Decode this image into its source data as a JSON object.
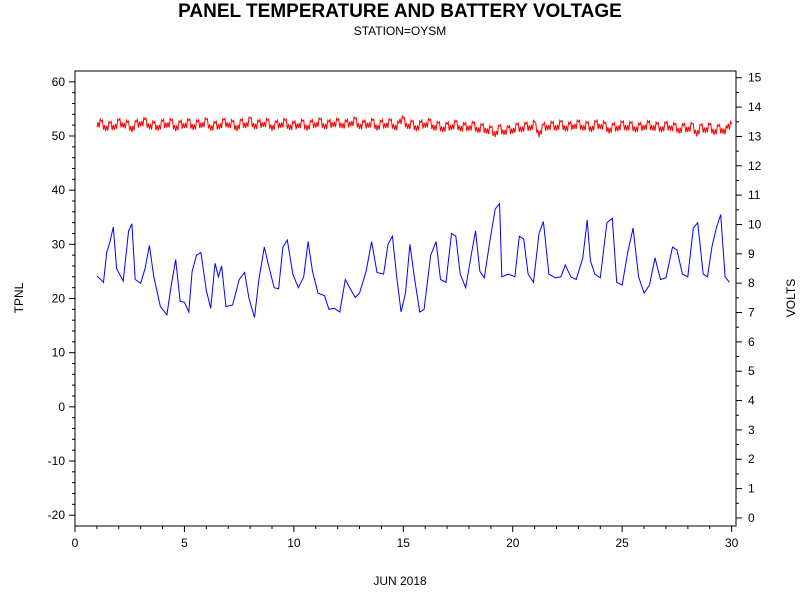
{
  "chart_data": {
    "type": "line",
    "title": "PANEL TEMPERATURE AND BATTERY VOLTAGE",
    "subtitle": "STATION=OYSM",
    "xlabel": "JUN 2018",
    "ylabel_left": "TPNL",
    "ylabel_right": "VOLTS",
    "xlim": [
      0,
      30.2
    ],
    "ylim_left": [
      -22,
      62
    ],
    "ylim_right": [
      -0.275,
      15.23
    ],
    "x_ticks": [
      "0",
      "5",
      "10",
      "15",
      "20",
      "25",
      "30"
    ],
    "y_left_ticks": [
      "-20",
      "-10",
      "0",
      "10",
      "20",
      "30",
      "40",
      "50",
      "60"
    ],
    "y_right_ticks": [
      "0",
      "1",
      "2",
      "3",
      "4",
      "5",
      "6",
      "7",
      "8",
      "9",
      "10",
      "11",
      "12",
      "13",
      "14",
      "15"
    ],
    "grid": false,
    "series": [
      {
        "name": "TPNL",
        "axis": "left",
        "color": "#0000ff",
        "points": [
          [
            1.0,
            24.2
          ],
          [
            1.3,
            23.0
          ],
          [
            1.45,
            28.5
          ],
          [
            1.6,
            30.5
          ],
          [
            1.75,
            33.2
          ],
          [
            1.9,
            25.5
          ],
          [
            2.1,
            24.0
          ],
          [
            2.2,
            23.2
          ],
          [
            2.45,
            32.5
          ],
          [
            2.6,
            33.8
          ],
          [
            2.75,
            23.5
          ],
          [
            3.0,
            22.8
          ],
          [
            3.2,
            25.5
          ],
          [
            3.4,
            29.8
          ],
          [
            3.6,
            24.0
          ],
          [
            3.9,
            18.5
          ],
          [
            4.2,
            17.0
          ],
          [
            4.4,
            22.5
          ],
          [
            4.6,
            27.2
          ],
          [
            4.8,
            19.5
          ],
          [
            5.0,
            19.3
          ],
          [
            5.2,
            17.5
          ],
          [
            5.35,
            25.0
          ],
          [
            5.55,
            28.0
          ],
          [
            5.75,
            28.5
          ],
          [
            6.0,
            21.5
          ],
          [
            6.2,
            18.2
          ],
          [
            6.4,
            26.5
          ],
          [
            6.55,
            24.0
          ],
          [
            6.7,
            26.0
          ],
          [
            6.9,
            18.5
          ],
          [
            7.2,
            18.8
          ],
          [
            7.5,
            23.5
          ],
          [
            7.75,
            24.8
          ],
          [
            7.95,
            20.0
          ],
          [
            8.2,
            16.5
          ],
          [
            8.4,
            23.5
          ],
          [
            8.65,
            29.5
          ],
          [
            8.85,
            26.0
          ],
          [
            9.1,
            22.0
          ],
          [
            9.3,
            21.8
          ],
          [
            9.5,
            29.5
          ],
          [
            9.7,
            30.8
          ],
          [
            9.95,
            24.5
          ],
          [
            10.2,
            22.0
          ],
          [
            10.45,
            24.0
          ],
          [
            10.65,
            30.5
          ],
          [
            10.85,
            25.0
          ],
          [
            11.1,
            21.0
          ],
          [
            11.4,
            20.5
          ],
          [
            11.6,
            18.0
          ],
          [
            11.85,
            18.2
          ],
          [
            12.1,
            17.5
          ],
          [
            12.35,
            23.5
          ],
          [
            12.55,
            22.0
          ],
          [
            12.8,
            20.2
          ],
          [
            13.0,
            21.0
          ],
          [
            13.3,
            25.0
          ],
          [
            13.55,
            30.5
          ],
          [
            13.8,
            24.8
          ],
          [
            14.1,
            24.5
          ],
          [
            14.3,
            30.0
          ],
          [
            14.5,
            31.5
          ],
          [
            14.7,
            24.0
          ],
          [
            14.9,
            17.5
          ],
          [
            15.1,
            21.0
          ],
          [
            15.3,
            30.0
          ],
          [
            15.5,
            24.0
          ],
          [
            15.75,
            17.5
          ],
          [
            15.95,
            18.0
          ],
          [
            16.25,
            28.0
          ],
          [
            16.5,
            30.5
          ],
          [
            16.7,
            23.5
          ],
          [
            16.95,
            23.0
          ],
          [
            17.2,
            32.0
          ],
          [
            17.4,
            31.5
          ],
          [
            17.6,
            24.5
          ],
          [
            17.85,
            22.0
          ],
          [
            18.1,
            28.0
          ],
          [
            18.3,
            32.5
          ],
          [
            18.5,
            25.0
          ],
          [
            18.7,
            23.8
          ],
          [
            18.95,
            30.5
          ],
          [
            19.2,
            36.5
          ],
          [
            19.4,
            37.5
          ],
          [
            19.5,
            24.0
          ],
          [
            19.8,
            24.5
          ],
          [
            20.1,
            24.0
          ],
          [
            20.3,
            31.5
          ],
          [
            20.5,
            31.0
          ],
          [
            20.7,
            24.5
          ],
          [
            20.95,
            23.0
          ],
          [
            21.2,
            32.0
          ],
          [
            21.4,
            34.2
          ],
          [
            21.65,
            24.5
          ],
          [
            21.95,
            23.8
          ],
          [
            22.2,
            24.0
          ],
          [
            22.4,
            26.2
          ],
          [
            22.65,
            24.0
          ],
          [
            22.9,
            23.5
          ],
          [
            23.2,
            27.5
          ],
          [
            23.4,
            34.5
          ],
          [
            23.55,
            27.0
          ],
          [
            23.75,
            24.5
          ],
          [
            24.0,
            23.8
          ],
          [
            24.3,
            34.0
          ],
          [
            24.55,
            34.8
          ],
          [
            24.75,
            23.0
          ],
          [
            25.0,
            22.5
          ],
          [
            25.25,
            28.5
          ],
          [
            25.5,
            33.0
          ],
          [
            25.75,
            24.0
          ],
          [
            26.0,
            21.0
          ],
          [
            26.25,
            22.5
          ],
          [
            26.5,
            27.5
          ],
          [
            26.75,
            23.5
          ],
          [
            27.0,
            23.8
          ],
          [
            27.3,
            29.5
          ],
          [
            27.5,
            29.0
          ],
          [
            27.75,
            24.5
          ],
          [
            28.0,
            24.0
          ],
          [
            28.25,
            33.0
          ],
          [
            28.45,
            34.0
          ],
          [
            28.7,
            24.5
          ],
          [
            28.9,
            24.0
          ],
          [
            29.1,
            29.5
          ],
          [
            29.3,
            33.0
          ],
          [
            29.5,
            35.5
          ],
          [
            29.7,
            24.0
          ],
          [
            29.9,
            23.0
          ]
        ]
      },
      {
        "name": "VOLTS",
        "axis": "right",
        "color": "#ff0000",
        "points": [
          [
            1.0,
            13.32
          ],
          [
            1.2,
            13.52
          ],
          [
            1.4,
            13.18
          ],
          [
            1.6,
            13.45
          ],
          [
            1.8,
            13.22
          ],
          [
            2.0,
            13.55
          ],
          [
            2.2,
            13.3
          ],
          [
            2.4,
            13.48
          ],
          [
            2.6,
            13.15
          ],
          [
            2.8,
            13.5
          ],
          [
            3.0,
            13.35
          ],
          [
            3.2,
            13.58
          ],
          [
            3.4,
            13.25
          ],
          [
            3.6,
            13.46
          ],
          [
            3.8,
            13.2
          ],
          [
            4.0,
            13.52
          ],
          [
            4.2,
            13.3
          ],
          [
            4.4,
            13.55
          ],
          [
            4.6,
            13.18
          ],
          [
            4.8,
            13.48
          ],
          [
            5.0,
            13.28
          ],
          [
            5.2,
            13.55
          ],
          [
            5.4,
            13.22
          ],
          [
            5.6,
            13.5
          ],
          [
            5.8,
            13.3
          ],
          [
            6.0,
            13.58
          ],
          [
            6.2,
            13.2
          ],
          [
            6.4,
            13.45
          ],
          [
            6.6,
            13.25
          ],
          [
            6.8,
            13.56
          ],
          [
            7.0,
            13.3
          ],
          [
            7.2,
            13.5
          ],
          [
            7.4,
            13.18
          ],
          [
            7.6,
            13.55
          ],
          [
            7.8,
            13.28
          ],
          [
            8.0,
            13.62
          ],
          [
            8.2,
            13.25
          ],
          [
            8.4,
            13.5
          ],
          [
            8.6,
            13.32
          ],
          [
            8.8,
            13.55
          ],
          [
            9.0,
            13.2
          ],
          [
            9.2,
            13.48
          ],
          [
            9.4,
            13.3
          ],
          [
            9.6,
            13.55
          ],
          [
            9.8,
            13.22
          ],
          [
            10.0,
            13.45
          ],
          [
            10.2,
            13.28
          ],
          [
            10.4,
            13.52
          ],
          [
            10.6,
            13.2
          ],
          [
            10.8,
            13.5
          ],
          [
            11.0,
            13.3
          ],
          [
            11.2,
            13.58
          ],
          [
            11.4,
            13.25
          ],
          [
            11.6,
            13.5
          ],
          [
            11.8,
            13.32
          ],
          [
            12.0,
            13.55
          ],
          [
            12.2,
            13.28
          ],
          [
            12.4,
            13.5
          ],
          [
            12.6,
            13.35
          ],
          [
            12.8,
            13.6
          ],
          [
            13.0,
            13.25
          ],
          [
            13.2,
            13.48
          ],
          [
            13.4,
            13.3
          ],
          [
            13.6,
            13.55
          ],
          [
            13.8,
            13.2
          ],
          [
            14.0,
            13.5
          ],
          [
            14.2,
            13.28
          ],
          [
            14.4,
            13.55
          ],
          [
            14.6,
            13.22
          ],
          [
            14.8,
            13.45
          ],
          [
            15.0,
            13.62
          ],
          [
            15.2,
            13.25
          ],
          [
            15.4,
            13.5
          ],
          [
            15.6,
            13.18
          ],
          [
            15.8,
            13.48
          ],
          [
            16.0,
            13.3
          ],
          [
            16.2,
            13.55
          ],
          [
            16.4,
            13.2
          ],
          [
            16.6,
            13.45
          ],
          [
            16.8,
            13.15
          ],
          [
            17.0,
            13.42
          ],
          [
            17.2,
            13.22
          ],
          [
            17.4,
            13.5
          ],
          [
            17.6,
            13.18
          ],
          [
            17.8,
            13.4
          ],
          [
            18.0,
            13.2
          ],
          [
            18.2,
            13.45
          ],
          [
            18.4,
            13.12
          ],
          [
            18.6,
            13.38
          ],
          [
            18.8,
            13.1
          ],
          [
            19.0,
            13.3
          ],
          [
            19.2,
            12.98
          ],
          [
            19.4,
            13.35
          ],
          [
            19.6,
            13.05
          ],
          [
            19.8,
            13.3
          ],
          [
            20.0,
            13.1
          ],
          [
            20.2,
            13.4
          ],
          [
            20.4,
            13.15
          ],
          [
            20.6,
            13.42
          ],
          [
            20.8,
            13.2
          ],
          [
            21.0,
            13.5
          ],
          [
            21.2,
            12.98
          ],
          [
            21.4,
            13.4
          ],
          [
            21.6,
            13.22
          ],
          [
            21.8,
            13.45
          ],
          [
            22.0,
            13.2
          ],
          [
            22.2,
            13.5
          ],
          [
            22.4,
            13.18
          ],
          [
            22.6,
            13.42
          ],
          [
            22.8,
            13.25
          ],
          [
            23.0,
            13.5
          ],
          [
            23.2,
            13.2
          ],
          [
            23.4,
            13.45
          ],
          [
            23.6,
            13.15
          ],
          [
            23.8,
            13.5
          ],
          [
            24.0,
            13.25
          ],
          [
            24.2,
            13.45
          ],
          [
            24.4,
            13.1
          ],
          [
            24.6,
            13.4
          ],
          [
            24.8,
            13.18
          ],
          [
            25.0,
            13.48
          ],
          [
            25.2,
            13.2
          ],
          [
            25.4,
            13.45
          ],
          [
            25.6,
            13.15
          ],
          [
            25.8,
            13.4
          ],
          [
            26.0,
            13.22
          ],
          [
            26.2,
            13.48
          ],
          [
            26.4,
            13.2
          ],
          [
            26.6,
            13.42
          ],
          [
            26.8,
            13.15
          ],
          [
            27.0,
            13.45
          ],
          [
            27.2,
            13.2
          ],
          [
            27.4,
            13.4
          ],
          [
            27.6,
            13.1
          ],
          [
            27.8,
            13.38
          ],
          [
            28.0,
            13.15
          ],
          [
            28.2,
            13.42
          ],
          [
            28.4,
            13.0
          ],
          [
            28.6,
            13.38
          ],
          [
            28.8,
            13.12
          ],
          [
            29.0,
            13.4
          ],
          [
            29.2,
            13.05
          ],
          [
            29.4,
            13.35
          ],
          [
            29.6,
            13.1
          ],
          [
            29.8,
            13.28
          ],
          [
            30.0,
            13.42
          ]
        ]
      }
    ]
  }
}
